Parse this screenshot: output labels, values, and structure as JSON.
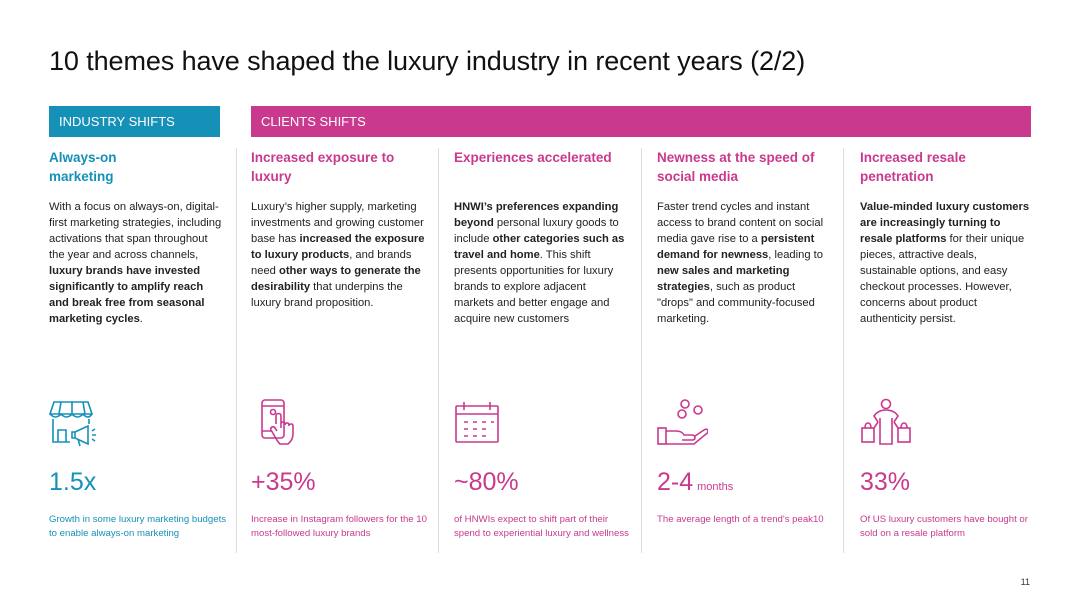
{
  "title": "10 themes have shaped the luxury industry in recent years (2/2)",
  "bands": {
    "industry": "INDUSTRY SHIFTS",
    "clients": "CLIENTS SHIFTS"
  },
  "colors": {
    "industry": "#1591b8",
    "clients": "#c9398d"
  },
  "columns": [
    {
      "heading": "Always-on marketing",
      "body_html": "With a focus on always-on, digital-first marketing strategies, including activations that span throughout the year and across channels, <b>luxury brands have invested significantly to amplify reach and break free from seasonal marketing cycles</b>.",
      "icon": "storefront-megaphone-icon",
      "stat": "1.5x",
      "unit": "",
      "desc": "Growth in some luxury marketing budgets to enable always-on marketing"
    },
    {
      "heading": "Increased exposure to luxury",
      "body_html": "Luxury’s higher supply, marketing investments and growing customer base has <b>increased the exposure to luxury products</b>, and brands need <b>other ways to generate the desirability</b> that underpins the luxury brand proposition.",
      "icon": "smartphone-tap-icon",
      "stat": "+35%",
      "unit": "",
      "desc": "Increase in Instagram followers for the 10 most-followed luxury brands"
    },
    {
      "heading": "Experiences accelerated",
      "body_html": "<b>HNWI’s preferences expanding beyond</b> personal luxury goods to include <b>other categories such as travel and home</b>. This shift presents opportunities for luxury brands to explore adjacent markets and better engage and acquire new customers",
      "icon": "calendar-icon",
      "stat": "~80%",
      "unit": "",
      "desc": "of HNWIs expect to shift part of their spend to experiential luxury and wellness"
    },
    {
      "heading": "Newness at the speed of social media",
      "body_html": "Faster trend cycles and instant access to brand content on social media gave rise to a <b>persistent demand for newness</b>, leading to <b>new sales and marketing strategies</b>, such as product \"drops\" and community-focused marketing.",
      "icon": "hand-bubbles-icon",
      "stat": "2-4",
      "unit": "months",
      "desc": "The average length of a trend's peak10"
    },
    {
      "heading": "Increased resale penetration",
      "body_html": "<b>Value-minded luxury customers are increasingly turning to resale platforms</b> for their unique pieces, attractive deals, sustainable options, and easy checkout processes. However, concerns about product authenticity persist.",
      "icon": "shopper-bags-icon",
      "stat": "33%",
      "unit": "",
      "desc": "Of US luxury customers have bought or sold on a resale platform"
    }
  ],
  "page_number": "11"
}
